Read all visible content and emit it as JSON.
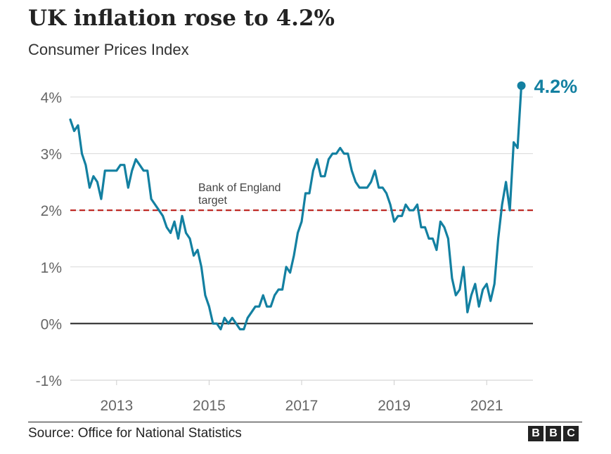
{
  "chart_data": {
    "type": "line",
    "title": "UK inflation rose to 4.2%",
    "subtitle": "Consumer Prices Index",
    "ylim": [
      -1,
      4
    ],
    "yticks": [
      4,
      3,
      2,
      1,
      0,
      -1
    ],
    "ytick_labels": [
      "4%",
      "3%",
      "2%",
      "1%",
      "0%",
      "-1%"
    ],
    "xlim": [
      2012.0,
      2022.0
    ],
    "xticks": [
      2013,
      2015,
      2017,
      2019,
      2021
    ],
    "xtick_labels": [
      "2013",
      "2015",
      "2017",
      "2019",
      "2021"
    ],
    "grid": true,
    "reference_line": {
      "label_line1": "Bank of England",
      "label_line2": "target",
      "value": 2,
      "color": "#bb1d18"
    },
    "end_label": "4.2%",
    "series": [
      {
        "color": "#1380a1",
        "values": [
          [
            2012.0,
            3.6
          ],
          [
            2012.083,
            3.4
          ],
          [
            2012.167,
            3.5
          ],
          [
            2012.25,
            3.0
          ],
          [
            2012.333,
            2.8
          ],
          [
            2012.417,
            2.4
          ],
          [
            2012.5,
            2.6
          ],
          [
            2012.583,
            2.5
          ],
          [
            2012.667,
            2.2
          ],
          [
            2012.75,
            2.7
          ],
          [
            2012.833,
            2.7
          ],
          [
            2012.917,
            2.7
          ],
          [
            2013.0,
            2.7
          ],
          [
            2013.083,
            2.8
          ],
          [
            2013.167,
            2.8
          ],
          [
            2013.25,
            2.4
          ],
          [
            2013.333,
            2.7
          ],
          [
            2013.417,
            2.9
          ],
          [
            2013.5,
            2.8
          ],
          [
            2013.583,
            2.7
          ],
          [
            2013.667,
            2.7
          ],
          [
            2013.75,
            2.2
          ],
          [
            2013.833,
            2.1
          ],
          [
            2013.917,
            2.0
          ],
          [
            2014.0,
            1.9
          ],
          [
            2014.083,
            1.7
          ],
          [
            2014.167,
            1.6
          ],
          [
            2014.25,
            1.8
          ],
          [
            2014.333,
            1.5
          ],
          [
            2014.417,
            1.9
          ],
          [
            2014.5,
            1.6
          ],
          [
            2014.583,
            1.5
          ],
          [
            2014.667,
            1.2
          ],
          [
            2014.75,
            1.3
          ],
          [
            2014.833,
            1.0
          ],
          [
            2014.917,
            0.5
          ],
          [
            2015.0,
            0.3
          ],
          [
            2015.083,
            0.0
          ],
          [
            2015.167,
            0.0
          ],
          [
            2015.25,
            -0.1
          ],
          [
            2015.333,
            0.1
          ],
          [
            2015.417,
            0.0
          ],
          [
            2015.5,
            0.1
          ],
          [
            2015.583,
            0.0
          ],
          [
            2015.667,
            -0.1
          ],
          [
            2015.75,
            -0.1
          ],
          [
            2015.833,
            0.1
          ],
          [
            2015.917,
            0.2
          ],
          [
            2016.0,
            0.3
          ],
          [
            2016.083,
            0.3
          ],
          [
            2016.167,
            0.5
          ],
          [
            2016.25,
            0.3
          ],
          [
            2016.333,
            0.3
          ],
          [
            2016.417,
            0.5
          ],
          [
            2016.5,
            0.6
          ],
          [
            2016.583,
            0.6
          ],
          [
            2016.667,
            1.0
          ],
          [
            2016.75,
            0.9
          ],
          [
            2016.833,
            1.2
          ],
          [
            2016.917,
            1.6
          ],
          [
            2017.0,
            1.8
          ],
          [
            2017.083,
            2.3
          ],
          [
            2017.167,
            2.3
          ],
          [
            2017.25,
            2.7
          ],
          [
            2017.333,
            2.9
          ],
          [
            2017.417,
            2.6
          ],
          [
            2017.5,
            2.6
          ],
          [
            2017.583,
            2.9
          ],
          [
            2017.667,
            3.0
          ],
          [
            2017.75,
            3.0
          ],
          [
            2017.833,
            3.1
          ],
          [
            2017.917,
            3.0
          ],
          [
            2018.0,
            3.0
          ],
          [
            2018.083,
            2.7
          ],
          [
            2018.167,
            2.5
          ],
          [
            2018.25,
            2.4
          ],
          [
            2018.333,
            2.4
          ],
          [
            2018.417,
            2.4
          ],
          [
            2018.5,
            2.5
          ],
          [
            2018.583,
            2.7
          ],
          [
            2018.667,
            2.4
          ],
          [
            2018.75,
            2.4
          ],
          [
            2018.833,
            2.3
          ],
          [
            2018.917,
            2.1
          ],
          [
            2019.0,
            1.8
          ],
          [
            2019.083,
            1.9
          ],
          [
            2019.167,
            1.9
          ],
          [
            2019.25,
            2.1
          ],
          [
            2019.333,
            2.0
          ],
          [
            2019.417,
            2.0
          ],
          [
            2019.5,
            2.1
          ],
          [
            2019.583,
            1.7
          ],
          [
            2019.667,
            1.7
          ],
          [
            2019.75,
            1.5
          ],
          [
            2019.833,
            1.5
          ],
          [
            2019.917,
            1.3
          ],
          [
            2020.0,
            1.8
          ],
          [
            2020.083,
            1.7
          ],
          [
            2020.167,
            1.5
          ],
          [
            2020.25,
            0.8
          ],
          [
            2020.333,
            0.5
          ],
          [
            2020.417,
            0.6
          ],
          [
            2020.5,
            1.0
          ],
          [
            2020.583,
            0.2
          ],
          [
            2020.667,
            0.5
          ],
          [
            2020.75,
            0.7
          ],
          [
            2020.833,
            0.3
          ],
          [
            2020.917,
            0.6
          ],
          [
            2021.0,
            0.7
          ],
          [
            2021.083,
            0.4
          ],
          [
            2021.167,
            0.7
          ],
          [
            2021.25,
            1.5
          ],
          [
            2021.333,
            2.1
          ],
          [
            2021.417,
            2.5
          ],
          [
            2021.5,
            2.0
          ],
          [
            2021.583,
            3.2
          ],
          [
            2021.667,
            3.1
          ],
          [
            2021.75,
            4.2
          ]
        ]
      }
    ]
  },
  "footer": {
    "source": "Source: Office for National Statistics",
    "logo_letters": [
      "B",
      "B",
      "C"
    ]
  }
}
